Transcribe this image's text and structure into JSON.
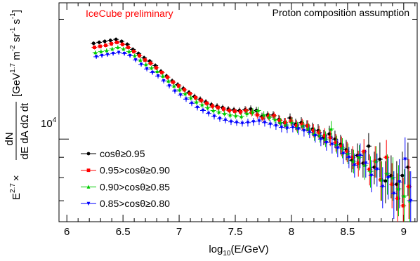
{
  "chart_data": {
    "type": "scatter",
    "log_y": true,
    "xlim": [
      5.93,
      9.12
    ],
    "ylim": [
      6200,
      22000
    ],
    "x_ticks": [
      6,
      6.5,
      7,
      7.5,
      8,
      8.5,
      9
    ],
    "x_tick_labels": [
      "6",
      "6.5",
      "7",
      "7.5",
      "8",
      "8.5",
      "9"
    ],
    "y_tick_label": "10",
    "y_tick_label_exp": "4",
    "xlabel": {
      "pre": "log",
      "sub": "10",
      "post": "(E/GeV)"
    },
    "ylabel": {
      "frac_num": "dN",
      "frac_den": "dE dA dΩ dt",
      "prefix": "E",
      "prefix_exp": "2.7",
      "times": "×",
      "units": "[GeV",
      "units_exp": "1.7",
      "units_m": " m",
      "units_m_exp": "-2",
      "units_sr": " sr",
      "units_sr_exp": "-1",
      "units_s": " s",
      "units_s_exp": "-1",
      "units_close": "]"
    },
    "annotations": {
      "top_left": "IceCube preliminary",
      "top_right": "Proton composition assumption"
    },
    "colors": {
      "annot_red": "#ff0000",
      "frame": "#000000"
    },
    "grid": false,
    "legend_position": "bottom-left",
    "x": [
      6.25,
      6.3,
      6.35,
      6.4,
      6.45,
      6.5,
      6.55,
      6.6,
      6.65,
      6.7,
      6.75,
      6.8,
      6.85,
      6.9,
      6.95,
      7.0,
      7.05,
      7.1,
      7.15,
      7.2,
      7.25,
      7.3,
      7.35,
      7.4,
      7.45,
      7.5,
      7.55,
      7.6,
      7.65,
      7.7,
      7.75,
      7.8,
      7.85,
      7.9,
      7.95,
      8.0,
      8.05,
      8.1,
      8.15,
      8.2,
      8.25,
      8.3,
      8.35,
      8.4,
      8.45,
      8.5,
      8.55,
      8.6,
      8.65,
      8.7,
      8.75,
      8.8,
      8.85,
      8.9,
      8.95,
      9.0,
      9.05
    ],
    "series": [
      {
        "name": "cosθ≥0.95",
        "color": "#000000",
        "marker": "circle",
        "values": [
          17400,
          17500,
          17600,
          17700,
          17800,
          17600,
          17300,
          16800,
          16400,
          16000,
          15700,
          15300,
          14800,
          14400,
          14000,
          13700,
          13400,
          13100,
          12800,
          12600,
          12400,
          12200,
          12100,
          12000,
          11900,
          11850,
          11800,
          11850,
          11900,
          11800,
          11400,
          11500,
          11500,
          11200,
          11000,
          11300,
          10900,
          11000,
          10800,
          10600,
          10500,
          10100,
          10300,
          10000,
          9700,
          9400,
          8850,
          9100,
          8700,
          9600,
          8500,
          8900,
          7850,
          8100,
          7700,
          8100,
          8500
        ],
        "err": [
          200,
          200,
          200,
          200,
          200,
          200,
          200,
          200,
          200,
          200,
          200,
          200,
          200,
          200,
          200,
          200,
          200,
          200,
          200,
          200,
          200,
          200,
          200,
          200,
          200,
          200,
          200,
          250,
          250,
          250,
          250,
          250,
          250,
          300,
          300,
          300,
          350,
          350,
          350,
          400,
          400,
          450,
          500,
          500,
          550,
          550,
          600,
          650,
          700,
          750,
          800,
          900,
          950,
          1000,
          1100,
          1200,
          1300
        ]
      },
      {
        "name": "0.95>cosθ≥0.90",
        "color": "#ff0000",
        "marker": "square",
        "values": [
          17000,
          17100,
          17200,
          17350,
          17500,
          17300,
          17000,
          16600,
          16200,
          15800,
          15500,
          15100,
          14700,
          14300,
          13900,
          13600,
          13300,
          13000,
          12700,
          12500,
          12300,
          12100,
          12000,
          11900,
          11800,
          11750,
          11700,
          11800,
          11650,
          11500,
          11300,
          11400,
          11450,
          11150,
          11000,
          11100,
          10800,
          10900,
          10800,
          10500,
          10400,
          10200,
          10100,
          9800,
          9600,
          9300,
          9000,
          8700,
          9300,
          8400,
          8800,
          7900,
          9000,
          7700,
          7100,
          6800,
          7600
        ],
        "err": [
          200,
          200,
          200,
          200,
          200,
          200,
          200,
          200,
          200,
          200,
          200,
          200,
          200,
          200,
          200,
          200,
          200,
          200,
          200,
          200,
          200,
          200,
          200,
          200,
          200,
          200,
          200,
          250,
          250,
          250,
          250,
          250,
          250,
          300,
          300,
          300,
          350,
          350,
          350,
          400,
          400,
          450,
          500,
          500,
          550,
          550,
          600,
          650,
          700,
          750,
          800,
          900,
          950,
          1000,
          1100,
          1200,
          1300
        ]
      },
      {
        "name": "0.90>cosθ≥0.85",
        "color": "#00cc00",
        "marker": "triangle",
        "values": [
          16500,
          16600,
          16700,
          16850,
          17000,
          16850,
          16600,
          16200,
          15800,
          15400,
          15100,
          14800,
          14400,
          14000,
          13600,
          13300,
          13000,
          12700,
          12400,
          12200,
          12000,
          11800,
          11700,
          11600,
          11500,
          11450,
          11400,
          11600,
          11700,
          11800,
          11500,
          11350,
          11200,
          11000,
          10850,
          11000,
          10700,
          10800,
          10600,
          10300,
          10200,
          10000,
          10600,
          9700,
          9500,
          9200,
          8800,
          9000,
          8600,
          8300,
          8800,
          7900,
          8200,
          8000,
          7500,
          7200,
          7000
        ],
        "err": [
          200,
          200,
          200,
          200,
          200,
          200,
          200,
          200,
          200,
          200,
          200,
          200,
          200,
          200,
          200,
          200,
          200,
          200,
          200,
          200,
          200,
          200,
          200,
          200,
          200,
          200,
          200,
          250,
          250,
          250,
          250,
          250,
          250,
          300,
          300,
          300,
          350,
          350,
          350,
          400,
          400,
          450,
          500,
          500,
          550,
          550,
          600,
          650,
          700,
          750,
          800,
          900,
          950,
          1000,
          1100,
          1200,
          1300
        ]
      },
      {
        "name": "0.85>cosθ≥0.80",
        "color": "#0000ff",
        "marker": "triangle-down",
        "values": [
          16100,
          16200,
          16300,
          16400,
          16500,
          16400,
          16200,
          15800,
          15400,
          15000,
          14700,
          14400,
          14000,
          13600,
          13200,
          12900,
          12600,
          12300,
          12000,
          11800,
          11600,
          11400,
          11250,
          11150,
          11050,
          11000,
          10950,
          11000,
          11050,
          11100,
          11000,
          10900,
          10800,
          10700,
          10650,
          10700,
          10600,
          10500,
          10400,
          10200,
          10000,
          9800,
          9700,
          9500,
          9200,
          9000,
          8600,
          9100,
          8700,
          8100,
          8400,
          7600,
          8000,
          7300,
          7800,
          8900,
          7000
        ],
        "err": [
          200,
          200,
          200,
          200,
          200,
          200,
          200,
          200,
          200,
          200,
          200,
          200,
          200,
          200,
          200,
          200,
          200,
          200,
          200,
          200,
          200,
          200,
          200,
          200,
          200,
          200,
          200,
          250,
          250,
          250,
          250,
          250,
          250,
          300,
          300,
          300,
          350,
          350,
          350,
          400,
          400,
          450,
          500,
          500,
          550,
          550,
          600,
          650,
          700,
          750,
          800,
          900,
          950,
          1000,
          1100,
          1200,
          1300
        ]
      }
    ]
  }
}
